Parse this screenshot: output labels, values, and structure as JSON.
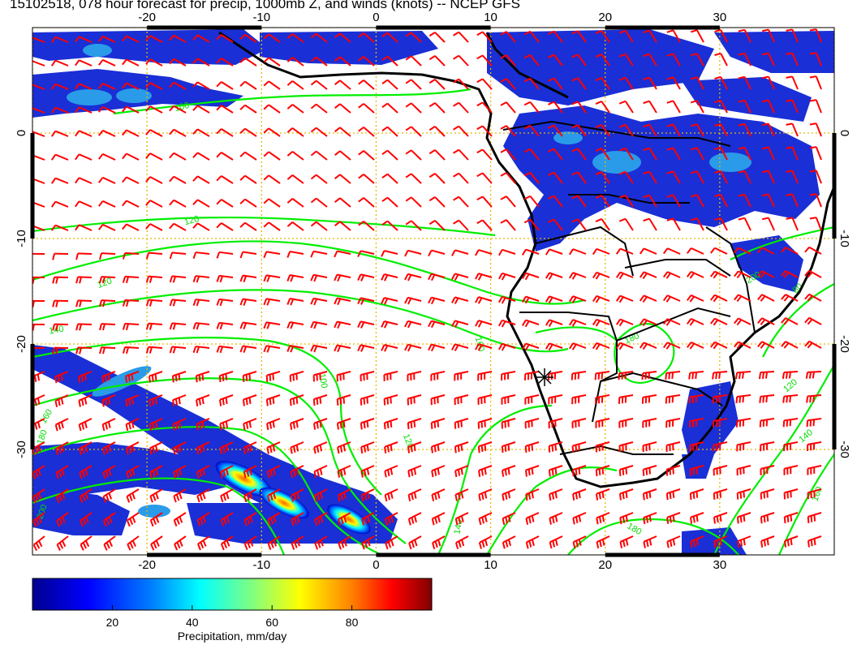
{
  "title": "15102518, 078 hour forecast for precip, 1000mb Z, and winds (knots) -- NCEP GFS",
  "map": {
    "lon_range": [
      -30,
      40
    ],
    "lat_range": [
      -40,
      10
    ],
    "lon_ticks": [
      "-20",
      "-10",
      "0",
      "10",
      "20",
      "30"
    ],
    "lat_ticks": [
      "0",
      "-10",
      "-20",
      "-30"
    ],
    "grid_color": "#e6b800",
    "coast_color": "#000000",
    "contour_color": "#00ee00",
    "barb_color": "#ff0000",
    "contour_labels": [
      "100",
      "120",
      "120",
      "140",
      "160",
      "180",
      "200",
      "100",
      "120",
      "140",
      "160",
      "180",
      "200",
      "80",
      "120",
      "140",
      "160",
      "180"
    ]
  },
  "colorbar": {
    "label": "Precipitation, mm/day",
    "ticks": [
      "20",
      "40",
      "60",
      "80"
    ],
    "range": [
      0,
      100
    ],
    "colors": [
      "#00008f",
      "#0000ff",
      "#0080ff",
      "#00ffff",
      "#80ff80",
      "#ffff00",
      "#ff8000",
      "#ff0000",
      "#800000"
    ]
  }
}
